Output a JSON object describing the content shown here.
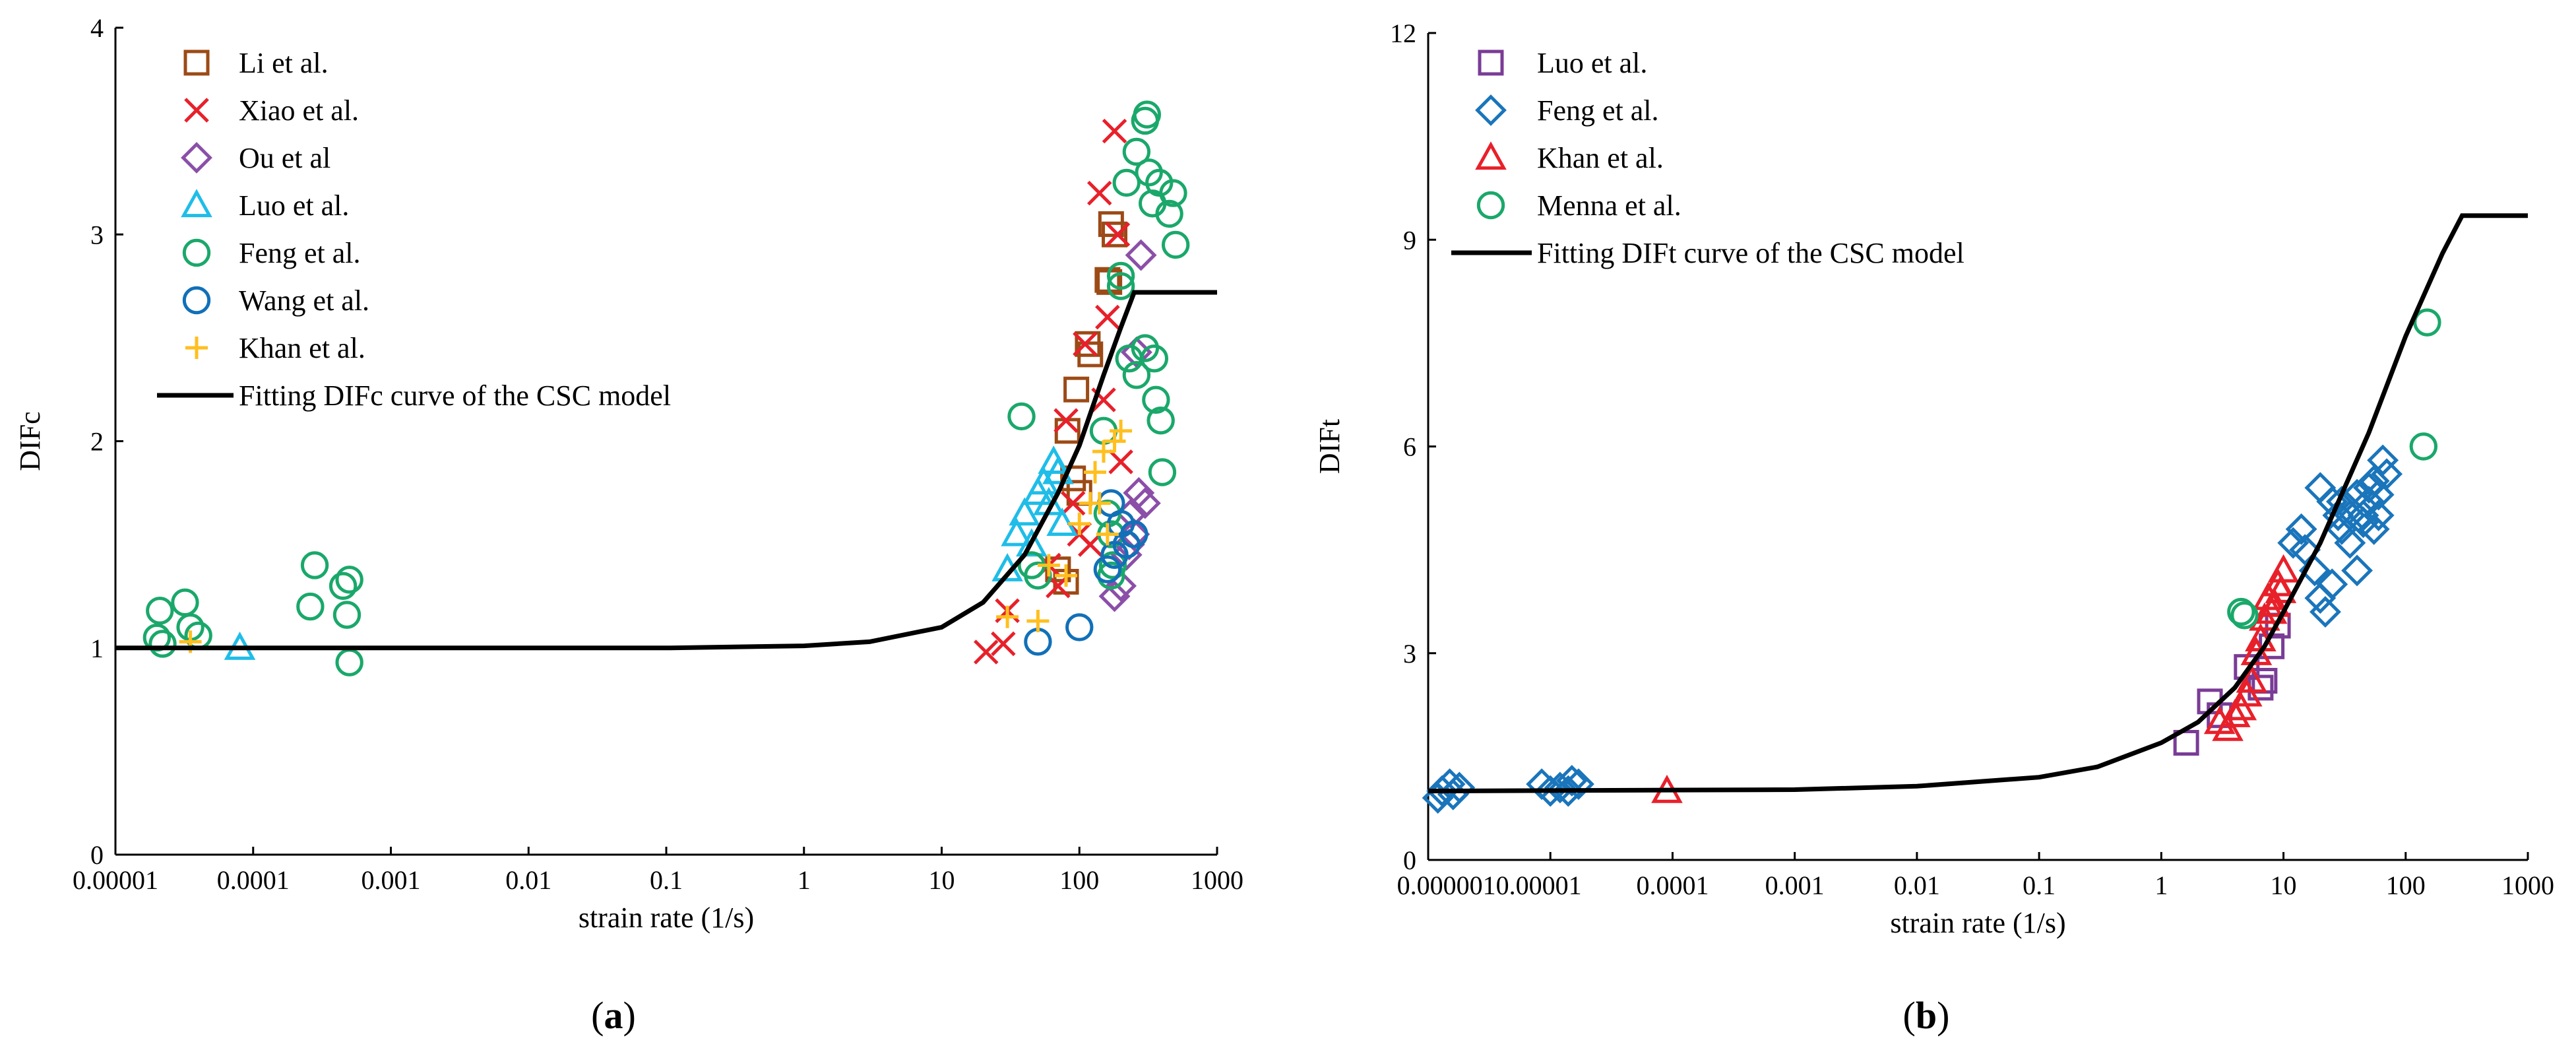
{
  "chart_data": [
    {
      "id": "a",
      "type": "scatter",
      "panel_label": "(a)",
      "xlabel": "strain rate (1/s)",
      "ylabel": "DIFc",
      "xscale": "log",
      "xlim": [
        1e-05,
        1000
      ],
      "ylim": [
        0,
        4
      ],
      "xticks": [
        1e-05,
        0.0001,
        0.001,
        0.01,
        0.1,
        1,
        10,
        100,
        1000
      ],
      "xtick_labels": [
        "0.00001",
        "0.0001",
        "0.001",
        "0.01",
        "0.1",
        "1",
        "10",
        "100",
        "1000"
      ],
      "yticks": [
        0,
        1,
        2,
        3,
        4
      ],
      "ytick_labels": [
        "0",
        "1",
        "2",
        "3",
        "4"
      ],
      "grid": false,
      "legend_position": "top-left",
      "series": [
        {
          "name": "Li et al.",
          "marker": "square",
          "color": "#9c4a16",
          "points": [
            [
              170,
              3.05
            ],
            [
              180,
              3.0
            ],
            [
              160,
              2.78
            ],
            [
              165,
              2.77
            ],
            [
              115,
              2.47
            ],
            [
              120,
              2.42
            ],
            [
              95,
              2.25
            ],
            [
              82,
              2.05
            ],
            [
              90,
              1.82
            ],
            [
              100,
              1.75
            ],
            [
              80,
              1.32
            ],
            [
              70,
              1.38
            ]
          ]
        },
        {
          "name": "Xiao et al.",
          "marker": "x",
          "color": "#e8202a",
          "points": [
            [
              21,
              0.98
            ],
            [
              28,
              1.02
            ],
            [
              30,
              1.18
            ],
            [
              60,
              1.4
            ],
            [
              70,
              1.3
            ],
            [
              100,
              1.55
            ],
            [
              120,
              1.5
            ],
            [
              140,
              3.2
            ],
            [
              180,
              3.5
            ],
            [
              190,
              3.0
            ],
            [
              160,
              2.6
            ],
            [
              150,
              2.2
            ],
            [
              110,
              2.47
            ],
            [
              80,
              2.1
            ],
            [
              90,
              1.7
            ],
            [
              200,
              1.9
            ]
          ]
        },
        {
          "name": "Ou et al",
          "marker": "diamond",
          "color": "#8b4fa8",
          "points": [
            [
              280,
              2.9
            ],
            [
              260,
              2.43
            ],
            [
              270,
              1.75
            ],
            [
              250,
              1.55
            ],
            [
              230,
              1.5
            ],
            [
              200,
              1.3
            ],
            [
              180,
              1.25
            ],
            [
              220,
              1.45
            ],
            [
              240,
              1.65
            ],
            [
              300,
              1.7
            ]
          ]
        },
        {
          "name": "Luo et al.",
          "marker": "triangle",
          "color": "#1fbde8",
          "points": [
            [
              8e-05,
              1.0
            ],
            [
              30,
              1.38
            ],
            [
              35,
              1.55
            ],
            [
              40,
              1.65
            ],
            [
              45,
              1.5
            ],
            [
              50,
              1.75
            ],
            [
              55,
              1.8
            ],
            [
              60,
              1.7
            ],
            [
              65,
              1.9
            ],
            [
              70,
              1.85
            ],
            [
              75,
              1.6
            ]
          ]
        },
        {
          "name": "Feng et al.",
          "marker": "circle",
          "color": "#1aa86a",
          "points": [
            [
              2e-05,
              1.05
            ],
            [
              2.2e-05,
              1.02
            ],
            [
              2.1e-05,
              1.18
            ],
            [
              3.2e-05,
              1.22
            ],
            [
              3.5e-05,
              1.1
            ],
            [
              4e-05,
              1.06
            ],
            [
              0.00028,
              1.4
            ],
            [
              0.00045,
              1.3
            ],
            [
              0.00026,
              1.2
            ],
            [
              0.0005,
              1.33
            ],
            [
              0.00048,
              1.16
            ],
            [
              0.0005,
              0.93
            ],
            [
              38,
              2.12
            ],
            [
              45,
              1.4
            ],
            [
              50,
              1.35
            ],
            [
              160,
              1.65
            ],
            [
              150,
              2.05
            ],
            [
              170,
              1.55
            ],
            [
              180,
              1.45
            ],
            [
              200,
              2.75
            ],
            [
              220,
              3.25
            ],
            [
              260,
              3.4
            ],
            [
              300,
              3.55
            ],
            [
              310,
              3.58
            ],
            [
              320,
              3.3
            ],
            [
              340,
              3.15
            ],
            [
              380,
              3.25
            ],
            [
              450,
              3.1
            ],
            [
              480,
              3.2
            ],
            [
              500,
              2.95
            ],
            [
              350,
              2.4
            ],
            [
              360,
              2.2
            ],
            [
              390,
              2.1
            ],
            [
              400,
              1.85
            ],
            [
              300,
              2.45
            ],
            [
              260,
              2.32
            ],
            [
              230,
              2.4
            ],
            [
              200,
              2.8
            ],
            [
              170,
              1.35
            ],
            [
              175,
              1.4
            ]
          ]
        },
        {
          "name": "Wang et al.",
          "marker": "circle",
          "color": "#1170b8",
          "points": [
            [
              50,
              1.03
            ],
            [
              100,
              1.1
            ],
            [
              160,
              1.38
            ],
            [
              180,
              1.45
            ],
            [
              200,
              1.6
            ],
            [
              220,
              1.5
            ],
            [
              250,
              1.55
            ],
            [
              170,
              1.7
            ]
          ]
        },
        {
          "name": "Khan et al.",
          "marker": "plus",
          "color": "#ffbf1f",
          "points": [
            [
              3.5e-05,
              1.03
            ],
            [
              30,
              1.15
            ],
            [
              50,
              1.13
            ],
            [
              60,
              1.4
            ],
            [
              80,
              1.35
            ],
            [
              100,
              1.6
            ],
            [
              120,
              1.7
            ],
            [
              130,
              1.85
            ],
            [
              150,
              1.95
            ],
            [
              180,
              2.0
            ],
            [
              200,
              2.05
            ],
            [
              160,
              1.55
            ],
            [
              140,
              1.7
            ]
          ]
        }
      ],
      "fit_curve": {
        "name": "Fitting DIFc curve of the CSC model",
        "color": "#000000",
        "points": [
          [
            1e-05,
            1.0
          ],
          [
            0.01,
            1.0
          ],
          [
            0.1,
            1.0
          ],
          [
            1,
            1.01
          ],
          [
            3,
            1.03
          ],
          [
            10,
            1.1
          ],
          [
            20,
            1.22
          ],
          [
            40,
            1.45
          ],
          [
            70,
            1.75
          ],
          [
            100,
            1.98
          ],
          [
            150,
            2.32
          ],
          [
            200,
            2.55
          ],
          [
            250,
            2.72
          ],
          [
            1000,
            2.72
          ]
        ]
      }
    },
    {
      "id": "b",
      "type": "scatter",
      "panel_label": "(b)",
      "xlabel": "strain rate (1/s)",
      "ylabel": "DIFt",
      "xscale": "log",
      "xlim": [
        1e-06,
        1000
      ],
      "ylim": [
        0,
        12
      ],
      "xticks": [
        1e-06,
        1e-05,
        0.0001,
        0.001,
        0.01,
        0.1,
        1,
        10,
        100,
        1000
      ],
      "xtick_labels": [
        "0.000001",
        "0.00001",
        "0.0001",
        "0.001",
        "0.01",
        "0.1",
        "1",
        "10",
        "100",
        "1000"
      ],
      "xtick_labels_joined": "0.0000010.00001",
      "yticks": [
        0,
        3,
        6,
        9,
        12
      ],
      "ytick_labels": [
        "0",
        "3",
        "6",
        "9",
        "12"
      ],
      "grid": false,
      "legend_position": "top-left",
      "series": [
        {
          "name": "Luo et al.",
          "marker": "square",
          "color": "#7a3c96",
          "points": [
            [
              1.6,
              1.7
            ],
            [
              2.5,
              2.3
            ],
            [
              3,
              2.1
            ],
            [
              5,
              2.8
            ],
            [
              6.5,
              2.5
            ],
            [
              7,
              2.6
            ],
            [
              8,
              3.1
            ],
            [
              9,
              3.4
            ]
          ]
        },
        {
          "name": "Feng et al.",
          "marker": "diamond",
          "color": "#1a75bb",
          "points": [
            [
              1.2e-06,
              0.9
            ],
            [
              1.3e-06,
              1.0
            ],
            [
              1.5e-06,
              1.1
            ],
            [
              1.8e-06,
              1.05
            ],
            [
              1.6e-06,
              0.95
            ],
            [
              8.5e-06,
              1.1
            ],
            [
              1e-05,
              1.0
            ],
            [
              1.2e-05,
              1.05
            ],
            [
              1.5e-05,
              1.15
            ],
            [
              1.4e-05,
              1.0
            ],
            [
              1.7e-05,
              1.1
            ],
            [
              12,
              4.6
            ],
            [
              14,
              4.8
            ],
            [
              15,
              4.5
            ],
            [
              18,
              4.2
            ],
            [
              20,
              3.8
            ],
            [
              22,
              3.6
            ],
            [
              25,
              4.0
            ],
            [
              20,
              5.4
            ],
            [
              25,
              5.2
            ],
            [
              28,
              5.0
            ],
            [
              30,
              4.8
            ],
            [
              35,
              4.6
            ],
            [
              40,
              4.2
            ],
            [
              45,
              5.0
            ],
            [
              50,
              5.2
            ],
            [
              55,
              5.5
            ],
            [
              60,
              5.3
            ],
            [
              65,
              5.8
            ],
            [
              70,
              5.6
            ],
            [
              55,
              4.8
            ],
            [
              60,
              5.0
            ],
            [
              50,
              5.4
            ],
            [
              40,
              5.3
            ],
            [
              35,
              5.0
            ],
            [
              30,
              5.2
            ],
            [
              45,
              4.9
            ]
          ]
        },
        {
          "name": "Khan et al.",
          "marker": "triangle",
          "color": "#e8202a",
          "points": [
            [
              9e-05,
              1.0
            ],
            [
              3,
              2.0
            ],
            [
              3.5,
              1.9
            ],
            [
              4,
              2.1
            ],
            [
              4.5,
              2.2
            ],
            [
              5,
              2.4
            ],
            [
              5.5,
              2.6
            ],
            [
              6,
              3.0
            ],
            [
              6.5,
              3.2
            ],
            [
              7,
              3.5
            ],
            [
              7.5,
              3.8
            ],
            [
              8,
              3.6
            ],
            [
              9,
              4.0
            ],
            [
              10,
              4.2
            ],
            [
              9.5,
              3.9
            ],
            [
              8.5,
              3.7
            ]
          ]
        },
        {
          "name": "Menna et al.",
          "marker": "circle",
          "color": "#1aa86a",
          "points": [
            [
              4.5,
              3.6
            ],
            [
              4.8,
              3.55
            ],
            [
              150,
              7.8
            ],
            [
              140,
              6.0
            ]
          ]
        }
      ],
      "fit_curve": {
        "name": "Fitting DIFt curve of the CSC model",
        "color": "#000000",
        "points": [
          [
            1e-06,
            1.0
          ],
          [
            0.001,
            1.02
          ],
          [
            0.01,
            1.07
          ],
          [
            0.1,
            1.2
          ],
          [
            0.3,
            1.35
          ],
          [
            1,
            1.7
          ],
          [
            2,
            2.0
          ],
          [
            4,
            2.5
          ],
          [
            7,
            3.1
          ],
          [
            10,
            3.6
          ],
          [
            20,
            4.6
          ],
          [
            50,
            6.2
          ],
          [
            100,
            7.6
          ],
          [
            200,
            8.8
          ],
          [
            290,
            9.35
          ],
          [
            1000,
            9.35
          ]
        ]
      }
    }
  ]
}
